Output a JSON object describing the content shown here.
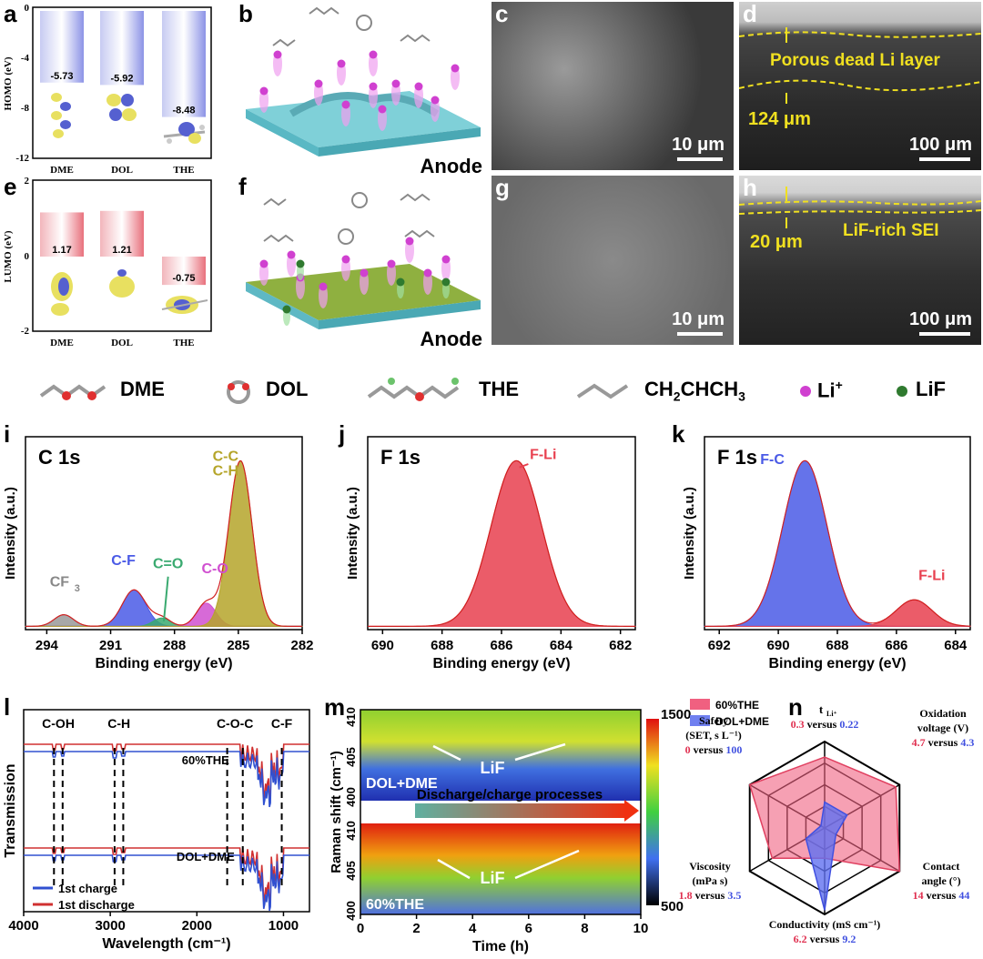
{
  "labels": {
    "a": "a",
    "b": "b",
    "c": "c",
    "d": "d",
    "e": "e",
    "f": "f",
    "g": "g",
    "h": "h",
    "i": "i",
    "j": "j",
    "k": "k",
    "l": "l",
    "m": "m",
    "n": "n"
  },
  "colors": {
    "homo": "#8c93e6",
    "lumo": "#e8707c",
    "red": "#e8404f",
    "blue": "#4a5ae6",
    "olive": "#b5a52a",
    "magenta": "#d050d0",
    "green": "#3aaa70",
    "gray": "#999999",
    "yellow": "#f0e020"
  },
  "panel_b": {
    "anode_label": "Anode"
  },
  "panel_f": {
    "anode_label": "Anode"
  },
  "sem": {
    "c_scale": "10 μm",
    "d_scale": "100 μm",
    "d_layer": "Porous dead Li layer",
    "d_thickness": "124 μm",
    "g_scale": "10 μm",
    "h_scale": "100 μm",
    "h_layer": "LiF-rich SEI",
    "h_thickness": "20 μm"
  },
  "legend": {
    "dme": "DME",
    "dol": "DOL",
    "the": "THE",
    "ch2chch3_main": "CH",
    "ch2chch3_sub1": "2",
    "ch2chch3_mid": "CHCH",
    "ch2chch3_sub2": "3",
    "li_main": "Li",
    "li_sup": "+",
    "lif": "LiF"
  },
  "chart_data": [
    {
      "id": "a",
      "type": "bar",
      "categories": [
        "DME",
        "DOL",
        "THE"
      ],
      "values": [
        -5.73,
        -5.92,
        -8.48
      ],
      "value_labels": [
        "-5.73",
        "-5.92",
        "-8.48"
      ],
      "ylabel": "HOMO (eV)",
      "yticks": [
        "0",
        "-4",
        "-8",
        "-12"
      ],
      "ylim": [
        -12,
        0
      ]
    },
    {
      "id": "e",
      "type": "bar",
      "categories": [
        "DME",
        "DOL",
        "THE"
      ],
      "values": [
        1.17,
        1.21,
        -0.75
      ],
      "value_labels": [
        "1.17",
        "1.21",
        "-0.75"
      ],
      "ylabel": "LUMO (eV)",
      "yticks": [
        "2",
        "0",
        "-2"
      ],
      "ylim": [
        -2,
        2
      ]
    },
    {
      "id": "i",
      "type": "area",
      "title": "C 1s",
      "xlabel": "Binding energy (eV)",
      "ylabel": "Intensity (a.u.)",
      "xticks": [
        "294",
        "291",
        "288",
        "285",
        "282"
      ],
      "xlim": [
        295,
        282
      ],
      "peaks": [
        {
          "name": "CF",
          "sub": "3",
          "center": 293.2,
          "height": 0.07
        },
        {
          "name": "C-F",
          "center": 289.9,
          "height": 0.22
        },
        {
          "name": "C=O",
          "center": 288.6,
          "height": 0.05
        },
        {
          "name": "C-O",
          "center": 286.5,
          "height": 0.14
        },
        {
          "name": "C-C",
          "name2": "C-H",
          "center": 284.9,
          "height": 1.0
        }
      ]
    },
    {
      "id": "j",
      "type": "area",
      "title": "F 1s",
      "xlabel": "Binding energy (eV)",
      "ylabel": "Intensity (a.u.)",
      "xticks": [
        "690",
        "688",
        "686",
        "684",
        "682"
      ],
      "xlim": [
        690.5,
        681.5
      ],
      "peaks": [
        {
          "name": "F-Li",
          "center": 685.5,
          "height": 1.0
        }
      ]
    },
    {
      "id": "k",
      "type": "area",
      "title": "F 1s",
      "xlabel": "Binding energy (eV)",
      "ylabel": "Intensity (a.u.)",
      "xticks": [
        "692",
        "690",
        "688",
        "686",
        "684"
      ],
      "xlim": [
        692.5,
        683.5
      ],
      "peaks": [
        {
          "name": "F-C",
          "center": 689.1,
          "height": 1.0
        },
        {
          "name": "F-Li",
          "center": 685.4,
          "height": 0.16
        }
      ]
    },
    {
      "id": "l",
      "type": "line",
      "xlabel": "Wavelength (cm⁻¹)",
      "ylabel": "Transmission",
      "xticks": [
        "4000",
        "3000",
        "2000",
        "1000"
      ],
      "xlim": [
        4000,
        700
      ],
      "markers": [
        "C-OH",
        "C-H",
        "C-O-C",
        "C-F"
      ],
      "annotations": [
        "60%THE",
        "DOL+DME"
      ],
      "series": [
        {
          "name": "1st charge"
        },
        {
          "name": "1st discharge"
        }
      ]
    },
    {
      "id": "m",
      "type": "heatmap",
      "xlabel": "Time (h)",
      "ylabel": "Raman shift (cm⁻¹)",
      "xticks": [
        "0",
        "2",
        "4",
        "6",
        "8",
        "10"
      ],
      "xlim": [
        0,
        10
      ],
      "yticks": [
        "410",
        "405",
        "400"
      ],
      "colorbar": [
        "1500",
        "500"
      ],
      "top_label": "DOL+DME",
      "bottom_label": "60%THE",
      "arrow_label": "Discharge/charge processes",
      "annotation": "LiF"
    },
    {
      "id": "n",
      "type": "radar",
      "series": [
        {
          "name": "60%THE"
        },
        {
          "name": "DOL+DME"
        }
      ],
      "axes": [
        {
          "label": "t",
          "sub": "Li⁺",
          "v1": "0.3",
          "sep": "versus",
          "v2": "0.22"
        },
        {
          "label": "Oxidation",
          "label2": "voltage (V)",
          "v1": "4.7",
          "sep": "versus",
          "v2": "4.3"
        },
        {
          "label": "Contact",
          "label2": "angle (°)",
          "v1": "14",
          "sep": "versus",
          "v2": "44"
        },
        {
          "label": "Conductivity (mS cm⁻¹)",
          "v1": "6.2",
          "sep": "versus",
          "v2": "9.2"
        },
        {
          "label": "Viscosity",
          "label2": "(mPa s)",
          "v1": "1.8",
          "sep": "versus",
          "v2": "3.5"
        },
        {
          "label": "Safety",
          "label2": "(SET, s L⁻¹)",
          "v1": "0",
          "sep": "versus",
          "v2": "100"
        }
      ],
      "scores_60THE": [
        0.82,
        0.95,
        1.0,
        0.35,
        0.7,
        1.0
      ],
      "scores_DOLDME": [
        0.3,
        0.3,
        0.15,
        0.95,
        0.25,
        0.05
      ]
    }
  ]
}
